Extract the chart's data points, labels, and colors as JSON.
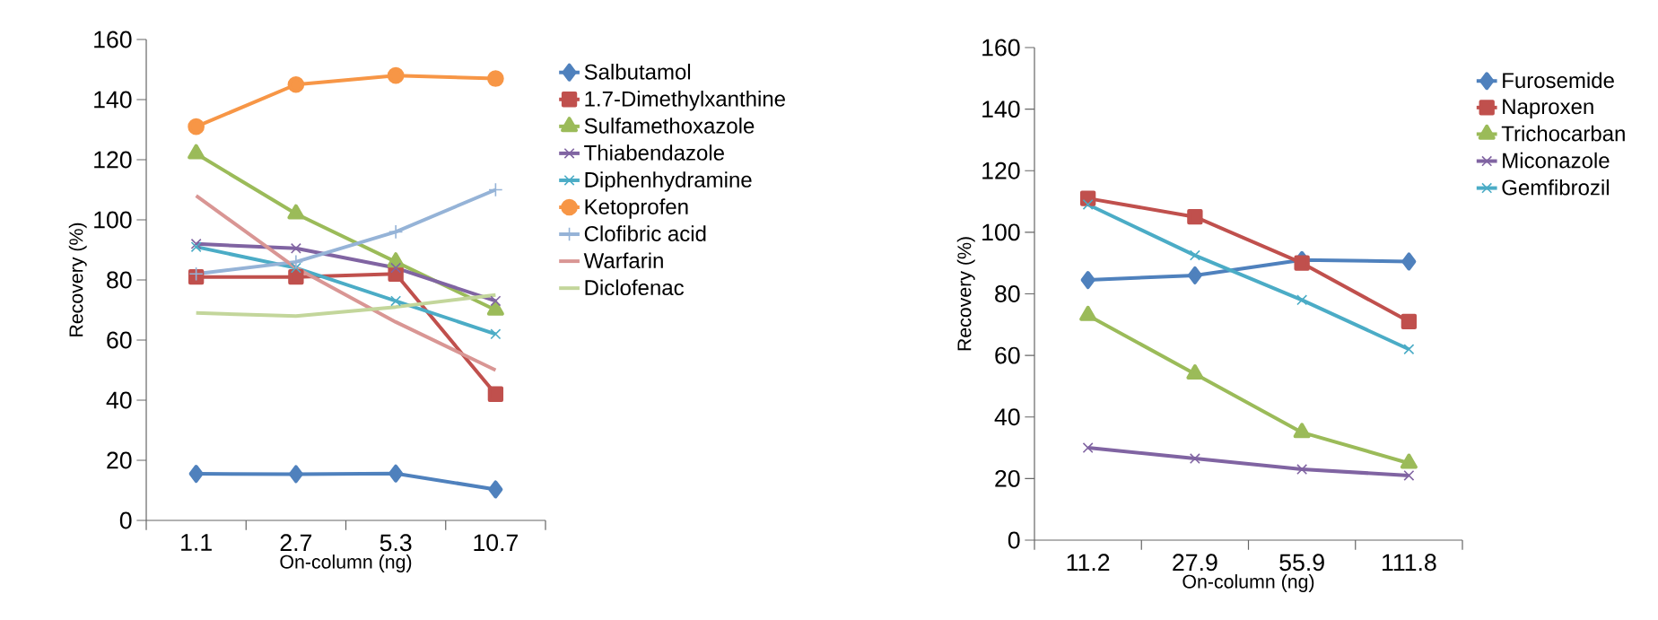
{
  "chart_data": [
    {
      "type": "line",
      "xlabel": "On-column (ng)",
      "ylabel": "Recovery (%)",
      "categories": [
        "1.1",
        "2.7",
        "5.3",
        "10.7"
      ],
      "ylim": [
        0,
        160
      ],
      "yticks": [
        0,
        20,
        40,
        60,
        80,
        100,
        120,
        140,
        160
      ],
      "legend": "right",
      "grid": false,
      "series": [
        {
          "name": "Salbutamol",
          "color": "#4f81bd",
          "marker": "diamond",
          "values": [
            15.5,
            15.4,
            15.6,
            10.3
          ]
        },
        {
          "name": "1.7-Dimethylxanthine",
          "color": "#c0504d",
          "marker": "square",
          "values": [
            81,
            81,
            82,
            42
          ]
        },
        {
          "name": "Sulfamethoxazole",
          "color": "#9bbb59",
          "marker": "triangle",
          "values": [
            122,
            102,
            86,
            70
          ]
        },
        {
          "name": "Thiabendazole",
          "color": "#8064a2",
          "marker": "cross",
          "values": [
            92,
            90.5,
            84,
            73
          ]
        },
        {
          "name": "Diphenhydramine",
          "color": "#4bacc6",
          "marker": "cross",
          "values": [
            91,
            84,
            73,
            62
          ]
        },
        {
          "name": "Ketoprofen",
          "color": "#f79646",
          "marker": "circle",
          "values": [
            131,
            145,
            148,
            147
          ]
        },
        {
          "name": "Clofibric acid",
          "color": "#95b3d7",
          "marker": "plus",
          "values": [
            82,
            86,
            96,
            110
          ]
        },
        {
          "name": "Warfarin",
          "color": "#d99694",
          "marker": "none",
          "values": [
            108,
            84,
            66,
            50
          ]
        },
        {
          "name": "Diclofenac",
          "color": "#c3d69b",
          "marker": "none",
          "values": [
            69,
            68,
            71,
            75
          ]
        }
      ]
    },
    {
      "type": "line",
      "xlabel": "On-column (ng)",
      "ylabel": "Recovery (%)",
      "categories": [
        "11.2",
        "27.9",
        "55.9",
        "111.8"
      ],
      "ylim": [
        0,
        160
      ],
      "yticks": [
        0,
        20,
        40,
        60,
        80,
        100,
        120,
        140,
        160
      ],
      "legend": "right",
      "grid": false,
      "series": [
        {
          "name": "Furosemide",
          "color": "#4f81bd",
          "marker": "diamond",
          "values": [
            84.5,
            86,
            91,
            90.5
          ]
        },
        {
          "name": "Naproxen",
          "color": "#c0504d",
          "marker": "square",
          "values": [
            111,
            105,
            90,
            71
          ]
        },
        {
          "name": "Trichocarban",
          "color": "#9bbb59",
          "marker": "triangle",
          "values": [
            73,
            54,
            35,
            25
          ]
        },
        {
          "name": "Miconazole",
          "color": "#8064a2",
          "marker": "cross",
          "values": [
            30,
            26.5,
            23,
            21
          ]
        },
        {
          "name": "Gemfibrozil",
          "color": "#4bacc6",
          "marker": "cross",
          "values": [
            109,
            92.5,
            78,
            62
          ]
        }
      ]
    }
  ]
}
